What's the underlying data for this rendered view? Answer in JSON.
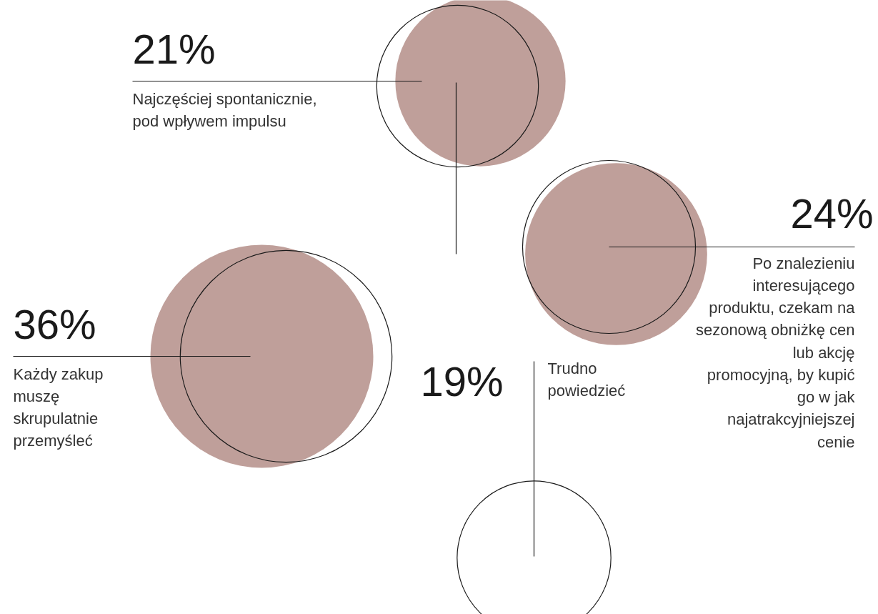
{
  "chart_data": {
    "type": "other",
    "categories": [
      "Najczęściej spontanicznie, pod wpływem impulsu",
      "Po znalezieniu interesującego produktu, czekam na sezonową obniżkę cen lub akcję promocyjną, by kupić go w jak najatrakcyjniejszej cenie",
      "Każdy zakup muszę skrupulatnie przemyśleć",
      "Trudno powiedzieć"
    ],
    "values": [
      21,
      24,
      36,
      19
    ],
    "value_labels": [
      "21%",
      "24%",
      "36%",
      "19%"
    ],
    "colors": [
      "#bf9f9a",
      "#bf9f9a",
      "#bf9f9a",
      null
    ]
  }
}
